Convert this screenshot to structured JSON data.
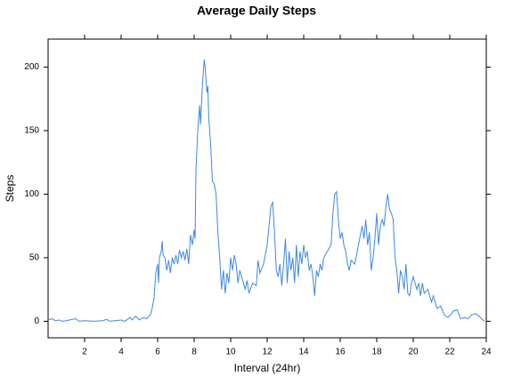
{
  "chart_data": {
    "type": "line",
    "title": "Average Daily Steps",
    "x_label": "Interval (24hr)",
    "y_label": "Steps",
    "color": "#3c88e6",
    "x": [
      0,
      0.2,
      0.4,
      0.6,
      0.8,
      1.0,
      1.5,
      1.7,
      2.0,
      2.5,
      3.0,
      3.2,
      3.4,
      4.0,
      4.2,
      4.5,
      4.6,
      4.8,
      5.0,
      5.2,
      5.4,
      5.6,
      5.7,
      5.8,
      5.9,
      6.0,
      6.05,
      6.1,
      6.2,
      6.25,
      6.3,
      6.4,
      6.5,
      6.6,
      6.7,
      6.8,
      6.9,
      7.0,
      7.1,
      7.2,
      7.3,
      7.4,
      7.5,
      7.6,
      7.7,
      7.8,
      7.9,
      8.0,
      8.05,
      8.1,
      8.2,
      8.3,
      8.35,
      8.45,
      8.55,
      8.6,
      8.7,
      8.75,
      8.8,
      8.9,
      9.0,
      9.1,
      9.2,
      9.3,
      9.4,
      9.5,
      9.6,
      9.7,
      9.8,
      9.9,
      10.0,
      10.1,
      10.2,
      10.3,
      10.4,
      10.5,
      10.6,
      10.7,
      10.8,
      10.9,
      11.0,
      11.2,
      11.4,
      11.5,
      11.6,
      11.8,
      12.0,
      12.1,
      12.2,
      12.3,
      12.4,
      12.5,
      12.6,
      12.7,
      12.8,
      12.9,
      13.0,
      13.1,
      13.2,
      13.3,
      13.4,
      13.5,
      13.6,
      13.7,
      13.8,
      13.9,
      14.0,
      14.1,
      14.2,
      14.3,
      14.4,
      14.5,
      14.6,
      14.7,
      14.8,
      14.9,
      15.0,
      15.1,
      15.3,
      15.5,
      15.6,
      15.7,
      15.8,
      15.9,
      16.0,
      16.1,
      16.2,
      16.3,
      16.4,
      16.5,
      16.6,
      16.8,
      17.0,
      17.2,
      17.3,
      17.4,
      17.5,
      17.6,
      17.7,
      17.8,
      17.9,
      18.0,
      18.1,
      18.2,
      18.3,
      18.4,
      18.5,
      18.6,
      18.7,
      18.8,
      18.9,
      19.0,
      19.1,
      19.2,
      19.3,
      19.4,
      19.5,
      19.6,
      19.7,
      19.8,
      19.9,
      20.0,
      20.2,
      20.3,
      20.4,
      20.5,
      20.6,
      20.8,
      21.0,
      21.1,
      21.3,
      21.5,
      21.7,
      21.9,
      22.1,
      22.2,
      22.4,
      22.6,
      22.8,
      23.0,
      23.2,
      23.4,
      23.6,
      23.8,
      23.9
    ],
    "values": [
      1,
      2,
      0.5,
      1,
      0,
      0.5,
      2,
      0,
      0.5,
      0,
      0.5,
      1.5,
      0,
      1,
      0,
      3,
      1,
      4,
      1,
      3,
      2,
      5,
      10,
      18,
      38,
      45,
      30,
      50,
      55,
      63,
      52,
      50,
      40,
      48,
      38,
      50,
      45,
      52,
      45,
      56,
      50,
      55,
      48,
      57,
      45,
      68,
      60,
      72,
      65,
      120,
      150,
      170,
      155,
      185,
      206,
      200,
      180,
      185,
      160,
      140,
      110,
      108,
      100,
      70,
      50,
      25,
      40,
      22,
      38,
      30,
      50,
      40,
      52,
      45,
      30,
      40,
      35,
      30,
      25,
      32,
      22,
      30,
      28,
      48,
      38,
      45,
      60,
      75,
      90,
      94,
      70,
      40,
      35,
      45,
      28,
      45,
      65,
      30,
      55,
      40,
      50,
      30,
      60,
      35,
      55,
      45,
      60,
      50,
      55,
      40,
      45,
      35,
      20,
      40,
      35,
      45,
      40,
      50,
      55,
      60,
      85,
      100,
      102,
      80,
      65,
      70,
      60,
      55,
      45,
      40,
      48,
      45,
      60,
      75,
      65,
      80,
      60,
      70,
      40,
      50,
      65,
      85,
      60,
      75,
      80,
      75,
      90,
      100,
      88,
      85,
      80,
      50,
      40,
      22,
      40,
      35,
      25,
      45,
      22,
      20,
      30,
      35,
      25,
      30,
      20,
      30,
      22,
      25,
      15,
      20,
      10,
      12,
      5,
      3,
      6,
      8,
      9,
      2,
      3,
      2,
      5,
      6,
      4,
      1,
      0
    ],
    "xlim": [
      0,
      24
    ],
    "ylim": [
      -13,
      222
    ],
    "xticks": [
      2,
      4,
      6,
      8,
      10,
      12,
      14,
      16,
      18,
      20,
      22,
      24
    ],
    "yticks": [
      0,
      50,
      100,
      150,
      200
    ]
  }
}
